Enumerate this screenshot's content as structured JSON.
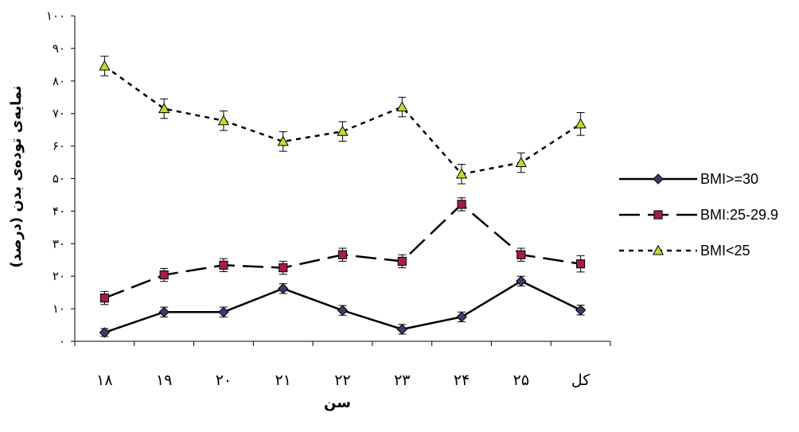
{
  "chart_data": {
    "type": "line",
    "title": "",
    "xlabel": "سن",
    "ylabel": "نمایه‌ی توده‌ی بدن (درصد)",
    "categories": [
      "۱۸",
      "۱۹",
      "۲۰",
      "۲۱",
      "۲۲",
      "۲۳",
      "۲۴",
      "۲۵",
      "کل"
    ],
    "y_ticks": [
      "۰",
      "۱۰",
      "۲۰",
      "۳۰",
      "۴۰",
      "۵۰",
      "۶۰",
      "۷۰",
      "۸۰",
      "۹۰",
      "۱۰۰"
    ],
    "ylim": [
      0,
      100
    ],
    "grid": false,
    "legend_position": "right",
    "series": [
      {
        "name": "BMI>=30",
        "values": [
          2.7,
          9,
          9,
          16.2,
          9.5,
          3.7,
          7.5,
          18.5,
          9.6
        ],
        "error": [
          1.2,
          1.5,
          1.5,
          1.5,
          1.5,
          1.5,
          1.5,
          1.5,
          1.5
        ],
        "color": "#000000",
        "marker_color": "#3b3b6e",
        "marker": "diamond",
        "line_style": "solid"
      },
      {
        "name": "BMI:25-29.9",
        "values": [
          13.3,
          20.4,
          23.4,
          22.6,
          26.6,
          24.6,
          42.1,
          26.6,
          23.8
        ],
        "error": [
          2,
          2,
          2,
          2,
          2,
          2,
          2,
          2,
          2.5
        ],
        "color": "#000000",
        "marker_color": "#a01e4a",
        "marker": "square",
        "line_style": "dashed"
      },
      {
        "name": "BMI<25",
        "values": [
          84.6,
          71.5,
          67.8,
          61.4,
          64.5,
          72,
          51.4,
          54.9,
          66.8
        ],
        "error": [
          3,
          3,
          3,
          3,
          3,
          3,
          3,
          3,
          3.5
        ],
        "color": "#000000",
        "marker_color": "#c8d830",
        "marker": "triangle",
        "line_style": "dotted"
      }
    ]
  }
}
